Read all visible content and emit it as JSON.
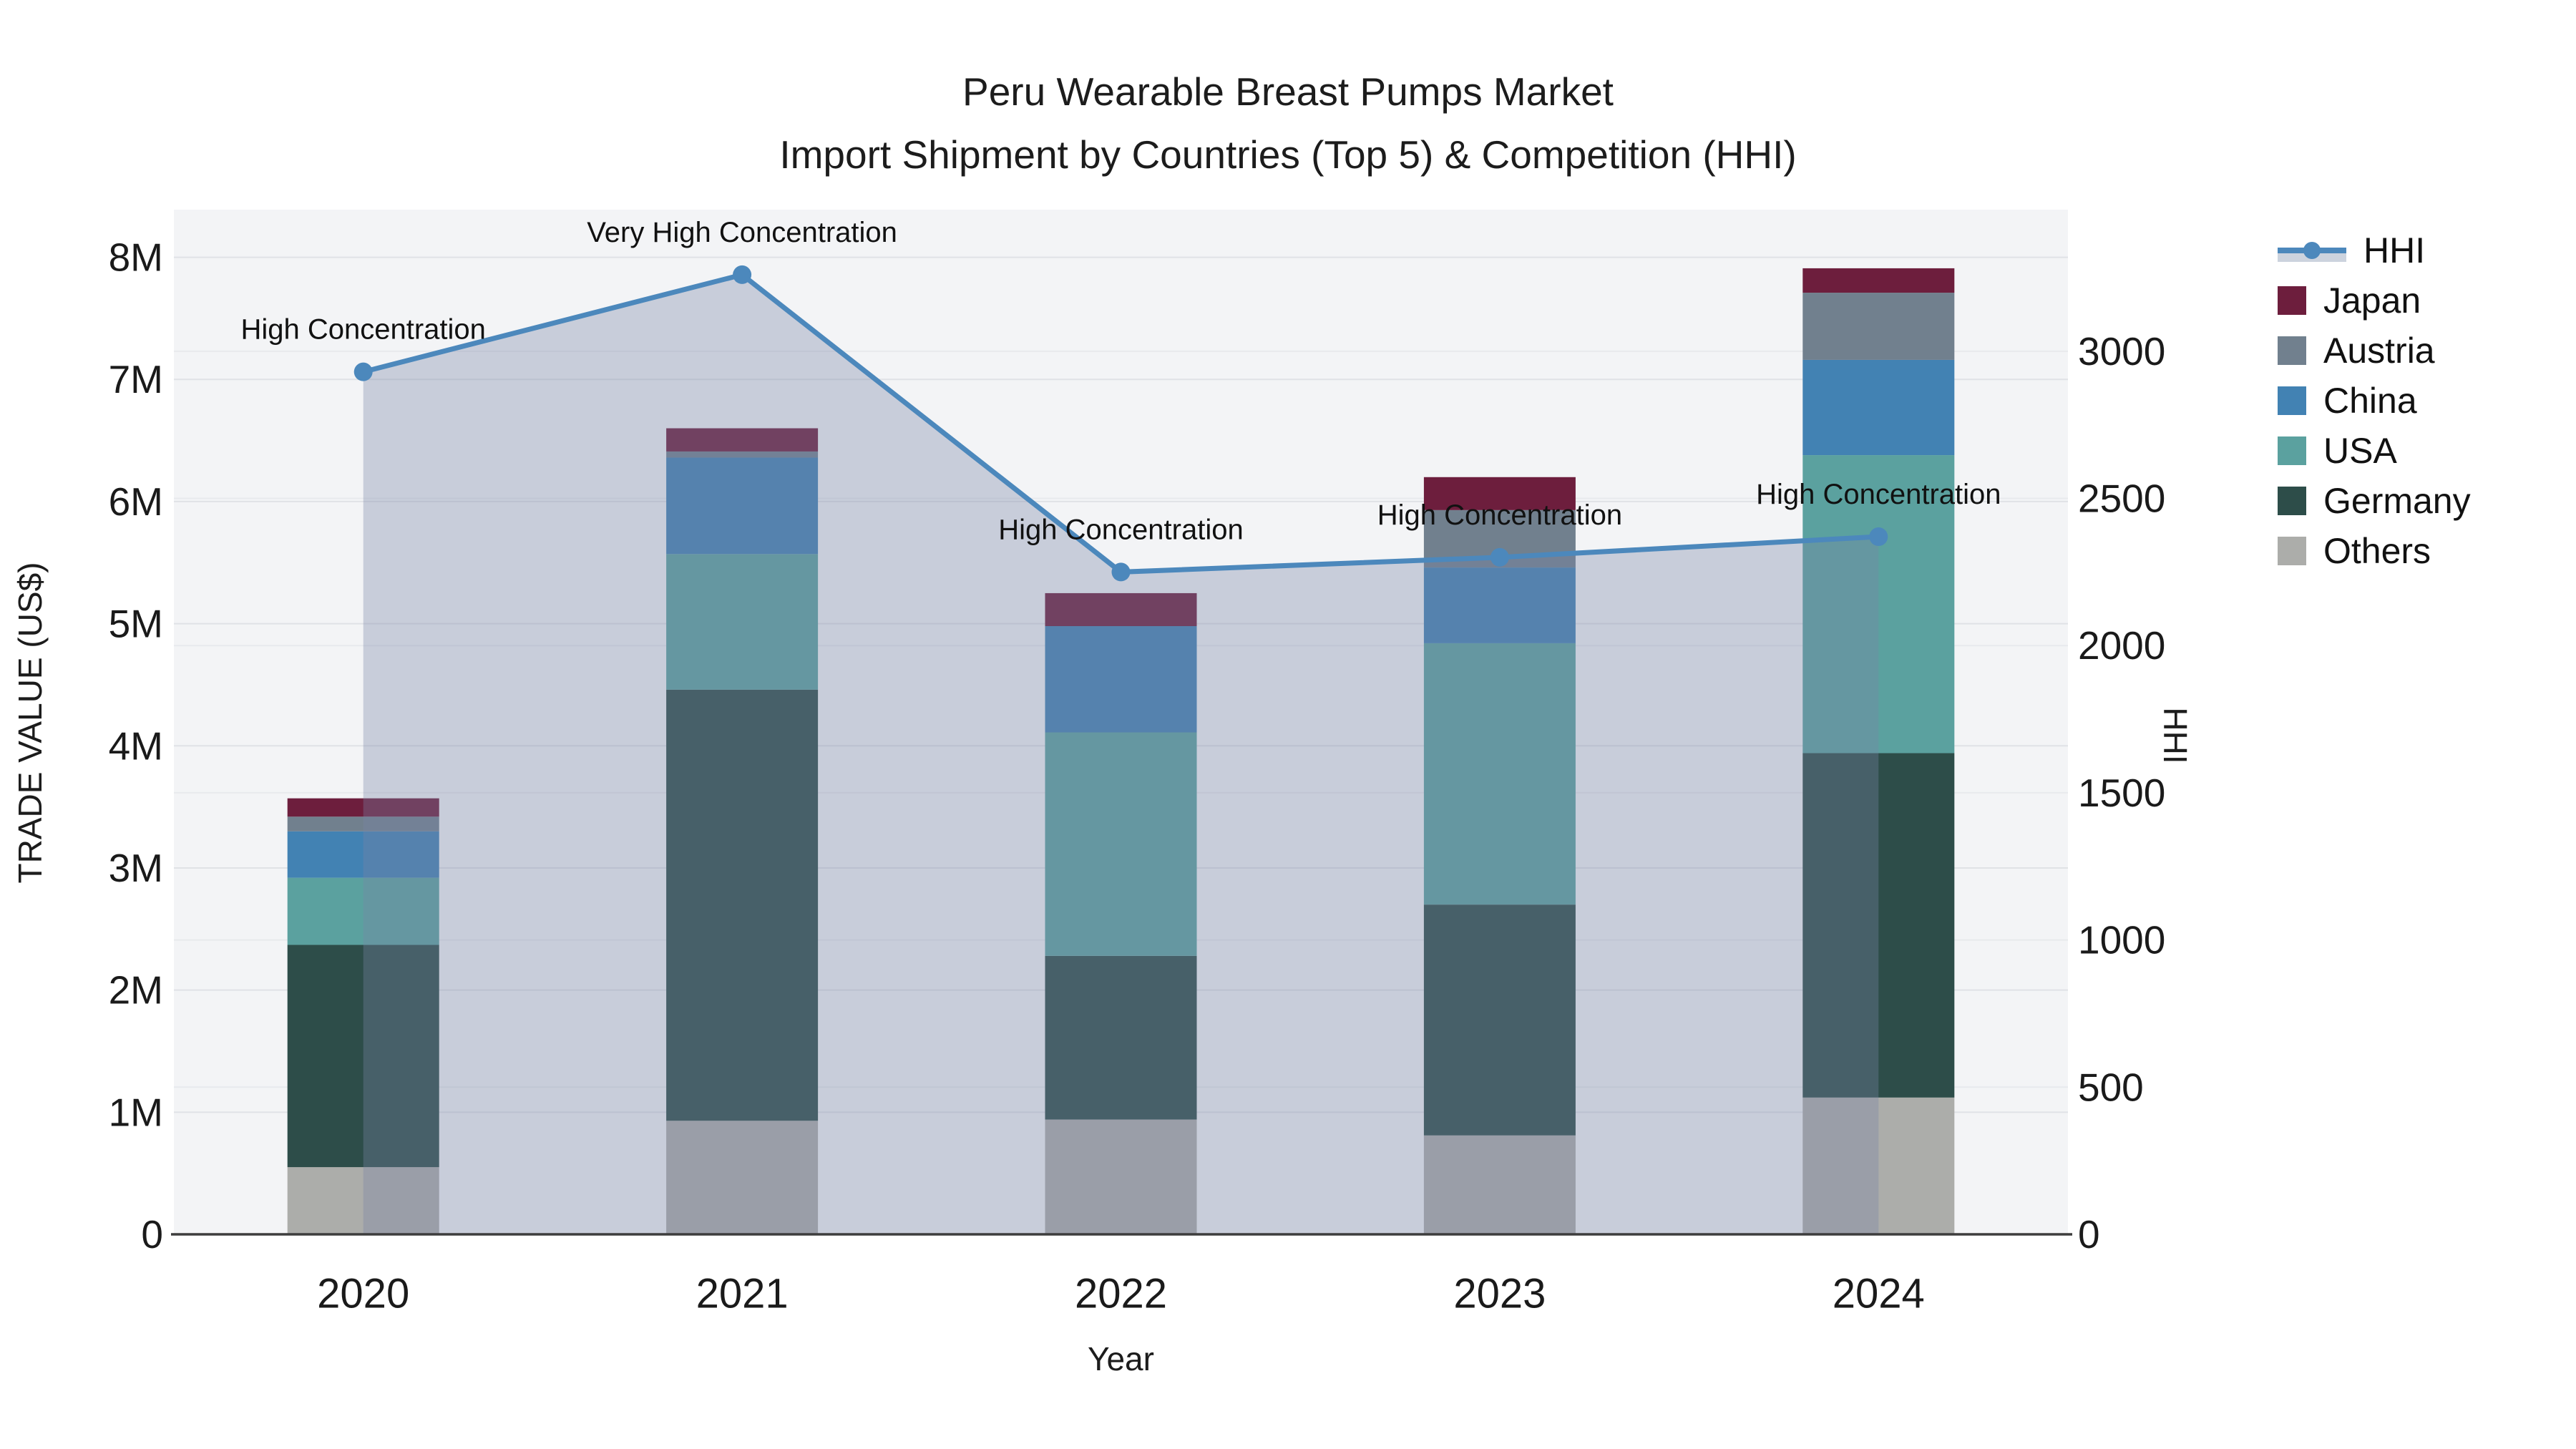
{
  "title": {
    "line1": "Peru Wearable Breast Pumps Market",
    "line2": "Import Shipment by Countries (Top 5) & Competition (HHI)"
  },
  "axes": {
    "y_left": {
      "title": "TRADE VALUE (US$)",
      "tick_labels": [
        "0",
        "1M",
        "2M",
        "3M",
        "4M",
        "5M",
        "6M",
        "7M",
        "8M"
      ],
      "tick_values_m": [
        0,
        1,
        2,
        3,
        4,
        5,
        6,
        7,
        8
      ]
    },
    "y_right": {
      "title": "HHI",
      "tick_labels": [
        "0",
        "500",
        "1000",
        "1500",
        "2000",
        "2500",
        "3000"
      ],
      "tick_values": [
        0,
        500,
        1000,
        1500,
        2000,
        2500,
        3000
      ]
    },
    "x": {
      "title": "Year",
      "categories": [
        "2020",
        "2021",
        "2022",
        "2023",
        "2024"
      ]
    }
  },
  "legend": {
    "items": [
      {
        "label": "HHI",
        "type": "line",
        "color": "#4c88bc",
        "fill": "#ccd3de"
      },
      {
        "label": "Japan",
        "type": "square",
        "color": "#6d1e3d"
      },
      {
        "label": "Austria",
        "type": "square",
        "color": "#71808e"
      },
      {
        "label": "China",
        "type": "square",
        "color": "#4282b3"
      },
      {
        "label": "USA",
        "type": "square",
        "color": "#5ba19f"
      },
      {
        "label": "Germany",
        "type": "square",
        "color": "#2d4d49"
      },
      {
        "label": "Others",
        "type": "square",
        "color": "#acadaa"
      }
    ]
  },
  "chart_data": {
    "type": "bar+line",
    "categories": [
      "2020",
      "2021",
      "2022",
      "2023",
      "2024"
    ],
    "bar_units": "million US$",
    "bar_stack_order_bottom_to_top": [
      "Others",
      "Germany",
      "USA",
      "China",
      "Austria",
      "Japan"
    ],
    "bar_series": [
      {
        "name": "Others",
        "color": "#acadaa",
        "values": [
          0.55,
          0.93,
          0.94,
          0.81,
          1.12
        ]
      },
      {
        "name": "Germany",
        "color": "#2d4d49",
        "values": [
          1.82,
          3.53,
          1.34,
          1.89,
          2.82
        ]
      },
      {
        "name": "USA",
        "color": "#5ba19f",
        "values": [
          0.55,
          1.11,
          1.83,
          2.14,
          2.44
        ]
      },
      {
        "name": "China",
        "color": "#4282b3",
        "values": [
          0.38,
          0.79,
          0.87,
          0.62,
          0.78
        ]
      },
      {
        "name": "Austria",
        "color": "#71808e",
        "values": [
          0.12,
          0.05,
          0.0,
          0.47,
          0.55
        ]
      },
      {
        "name": "Japan",
        "color": "#6d1e3d",
        "values": [
          0.15,
          0.19,
          0.27,
          0.27,
          0.2
        ]
      }
    ],
    "bar_totals_m": [
      3.57,
      6.6,
      5.25,
      6.2,
      7.91
    ],
    "line_series": {
      "name": "HHI",
      "axis": "right",
      "color": "#4c88bc",
      "fill_color": "#7885a5",
      "fill_opacity": 0.35,
      "values": [
        2930,
        3260,
        2250,
        2300,
        2370
      ]
    },
    "annotations": [
      {
        "x": "2020",
        "text": "High Concentration"
      },
      {
        "x": "2021",
        "text": "Very High Concentration"
      },
      {
        "x": "2022",
        "text": "High Concentration"
      },
      {
        "x": "2023",
        "text": "High Concentration"
      },
      {
        "x": "2024",
        "text": "High Concentration"
      }
    ],
    "ylim_left_m": [
      0,
      8.39
    ],
    "ylim_right": [
      0,
      3481
    ],
    "grid": true,
    "legend_position": "right"
  }
}
